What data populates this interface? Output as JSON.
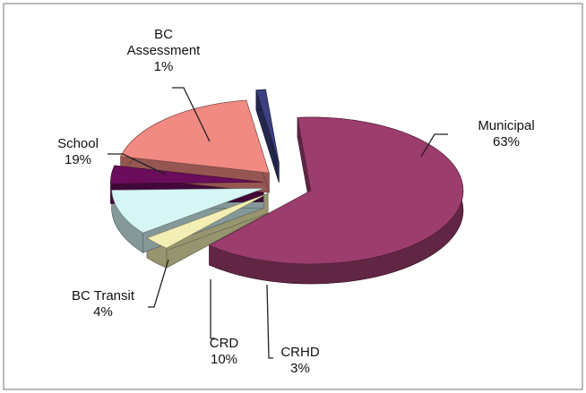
{
  "chart_data": {
    "type": "pie",
    "categories": [
      "Municipal",
      "CRHD",
      "CRD",
      "BC Transit",
      "School",
      "BC Assessment"
    ],
    "values": [
      63,
      3,
      10,
      4,
      19,
      1
    ],
    "value_labels": [
      "63%",
      "3%",
      "10%",
      "4%",
      "19%",
      "1%"
    ],
    "colors": [
      "#9c3d6e",
      "#f3efb4",
      "#d6f5f5",
      "#6b0d5c",
      "#f08a82",
      "#3c3f80"
    ]
  }
}
